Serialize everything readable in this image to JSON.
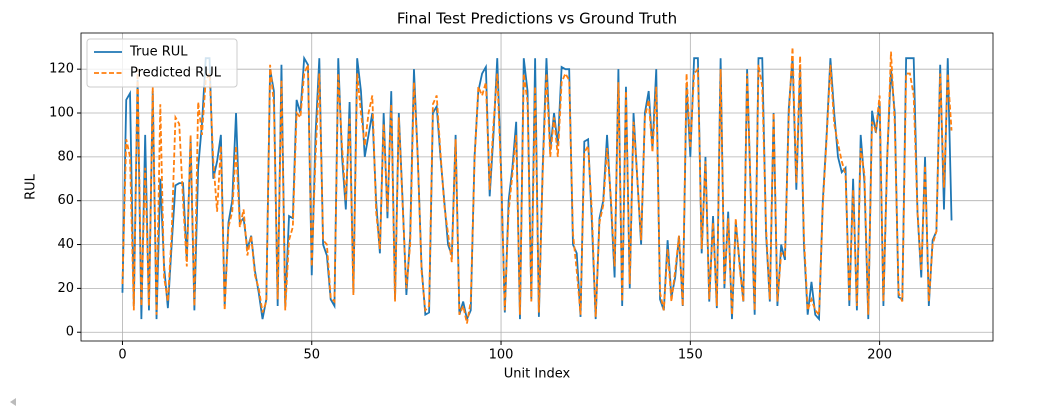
{
  "chart_data": {
    "type": "line",
    "title": "Final Test Predictions vs Ground Truth",
    "xlabel": "Unit Index",
    "ylabel": "RUL",
    "xlim": [
      -10.95,
      229.95
    ],
    "xticks": [
      0,
      50,
      100,
      150,
      200
    ],
    "ylim": [
      -4,
      136.5
    ],
    "yticks": [
      0,
      20,
      40,
      60,
      80,
      100,
      120
    ],
    "grid": true,
    "legend": "upper left",
    "series": [
      {
        "name": "True RUL",
        "color": "#1f77b4",
        "linestyle": "solid",
        "values": [
          18,
          106,
          109,
          12,
          115,
          6,
          90,
          10,
          110,
          6,
          70,
          30,
          11,
          40,
          67,
          68,
          68,
          33,
          88,
          10,
          75,
          95,
          125,
          125,
          70,
          78,
          90,
          12,
          50,
          60,
          100,
          50,
          52,
          38,
          44,
          28,
          18,
          6,
          15,
          120,
          110,
          12,
          122,
          12,
          53,
          52,
          106,
          100,
          125,
          122,
          26,
          90,
          125,
          40,
          35,
          15,
          12,
          125,
          80,
          56,
          105,
          18,
          125,
          110,
          80,
          90,
          100,
          60,
          36,
          100,
          52,
          110,
          15,
          100,
          60,
          17,
          44,
          120,
          80,
          30,
          8,
          9,
          100,
          103,
          80,
          60,
          40,
          35,
          90,
          8,
          14,
          6,
          10,
          80,
          110,
          118,
          121,
          62,
          90,
          125,
          75,
          9,
          60,
          75,
          96,
          6,
          125,
          110,
          15,
          125,
          7,
          75,
          125,
          83,
          100,
          85,
          121,
          120,
          120,
          40,
          36,
          7,
          87,
          88,
          50,
          6,
          52,
          60,
          90,
          60,
          25,
          120,
          12,
          112,
          20,
          100,
          70,
          40,
          100,
          110,
          84,
          120,
          15,
          10,
          42,
          16,
          25,
          44,
          12,
          113,
          80,
          125,
          125,
          36,
          80,
          14,
          53,
          11,
          125,
          20,
          55,
          6,
          50,
          32,
          14,
          120,
          60,
          8,
          125,
          125,
          45,
          14,
          100,
          12,
          40,
          33,
          102,
          125,
          65,
          120,
          40,
          8,
          23,
          8,
          6,
          60,
          90,
          125,
          100,
          80,
          73,
          75,
          12,
          70,
          10,
          90,
          68,
          6,
          101,
          91,
          105,
          12,
          80,
          120,
          100,
          16,
          15,
          125,
          125,
          125,
          55,
          25,
          80,
          12,
          42,
          46,
          122,
          56,
          125,
          51
        ]
      },
      {
        "name": "Predicted RUL",
        "color": "#ff7f0e",
        "linestyle": "dashed",
        "values": [
          22,
          88,
          80,
          10,
          120,
          12,
          75,
          12,
          112,
          8,
          104,
          25,
          14,
          45,
          98,
          95,
          60,
          30,
          90,
          12,
          105,
          90,
          115,
          118,
          78,
          55,
          85,
          10,
          48,
          55,
          85,
          48,
          56,
          35,
          44,
          26,
          20,
          9,
          14,
          122,
          104,
          15,
          115,
          10,
          42,
          48,
          100,
          98,
          118,
          122,
          30,
          80,
          118,
          42,
          40,
          16,
          14,
          118,
          85,
          60,
          98,
          17,
          118,
          100,
          85,
          100,
          108,
          55,
          38,
          95,
          55,
          104,
          14,
          98,
          58,
          20,
          40,
          114,
          80,
          28,
          10,
          12,
          104,
          108,
          82,
          58,
          45,
          32,
          88,
          8,
          12,
          4,
          14,
          78,
          112,
          108,
          114,
          65,
          95,
          118,
          72,
          10,
          55,
          72,
          90,
          8,
          118,
          105,
          14,
          112,
          9,
          72,
          118,
          80,
          98,
          80,
          114,
          118,
          115,
          45,
          28,
          8,
          82,
          85,
          55,
          7,
          50,
          58,
          84,
          62,
          30,
          114,
          14,
          110,
          22,
          96,
          70,
          42,
          98,
          106,
          82,
          112,
          18,
          10,
          38,
          14,
          28,
          44,
          12,
          118,
          84,
          118,
          120,
          38,
          78,
          15,
          50,
          12,
          120,
          22,
          52,
          8,
          52,
          30,
          14,
          118,
          62,
          10,
          122,
          112,
          48,
          15,
          100,
          14,
          36,
          35,
          98,
          130,
          68,
          126,
          44,
          10,
          15,
          10,
          8,
          58,
          88,
          122,
          95,
          86,
          78,
          72,
          14,
          65,
          12,
          84,
          72,
          8,
          96,
          92,
          108,
          14,
          78,
          128,
          95,
          18,
          14,
          118,
          118,
          108,
          55,
          28,
          76,
          14,
          40,
          46,
          118,
          66,
          118,
          92
        ]
      }
    ]
  }
}
